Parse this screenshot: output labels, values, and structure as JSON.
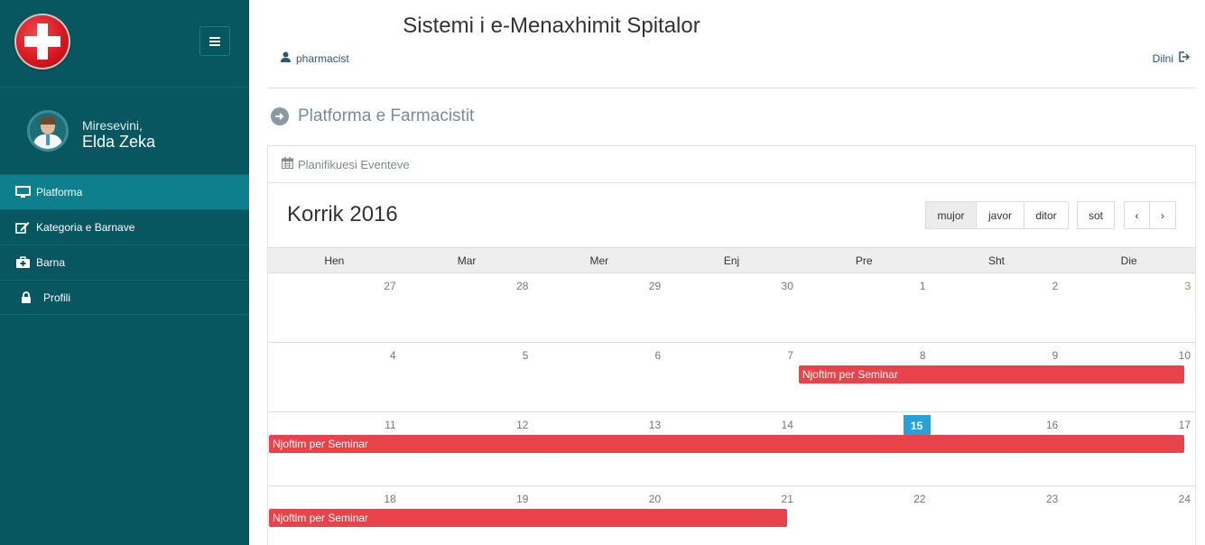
{
  "app": {
    "title": "Sistemi i e-Menaxhimit Spitalor"
  },
  "header": {
    "user": "pharmacist",
    "logout": "Dilni"
  },
  "sidebar": {
    "welcome": "Miresevini,",
    "username": "Elda Zeka",
    "items": [
      {
        "label": "Platforma",
        "icon": "desktop-icon",
        "active": true
      },
      {
        "label": "Kategoria e Barnave",
        "icon": "edit-icon",
        "active": false
      },
      {
        "label": "Barna",
        "icon": "medkit-icon",
        "active": false
      },
      {
        "label": "Profili",
        "icon": "lock-icon",
        "active": false
      }
    ]
  },
  "page": {
    "title": "Platforma e Farmacistit"
  },
  "calendar": {
    "panel_title": "Planifikuesi Eventeve",
    "month_title": "Korrik 2016",
    "views": [
      "mujor",
      "javor",
      "ditor"
    ],
    "active_view": "mujor",
    "today_label": "sot",
    "prev": "‹",
    "next": "›",
    "weekdays": [
      "Hen",
      "Mar",
      "Mer",
      "Enj",
      "Pre",
      "Sht",
      "Die"
    ],
    "weeks": [
      [
        "27",
        "28",
        "29",
        "30",
        "1",
        "2",
        "3"
      ],
      [
        "4",
        "5",
        "6",
        "7",
        "8",
        "9",
        "10"
      ],
      [
        "11",
        "12",
        "13",
        "14",
        "15",
        "16",
        "17"
      ],
      [
        "18",
        "19",
        "20",
        "21",
        "22",
        "23",
        "24"
      ]
    ],
    "today": "15",
    "events": [
      {
        "title": "Njoftim per Seminar",
        "week": 1,
        "start_col": 4,
        "end_col": 6
      },
      {
        "title": "Njoftim per Seminar",
        "week": 2,
        "start_col": 0,
        "end_col": 6
      },
      {
        "title": "Njoftim per Seminar",
        "week": 3,
        "start_col": 0,
        "end_col": 3
      }
    ],
    "event_color": "#e8434b",
    "today_color": "#2aa0d8"
  }
}
